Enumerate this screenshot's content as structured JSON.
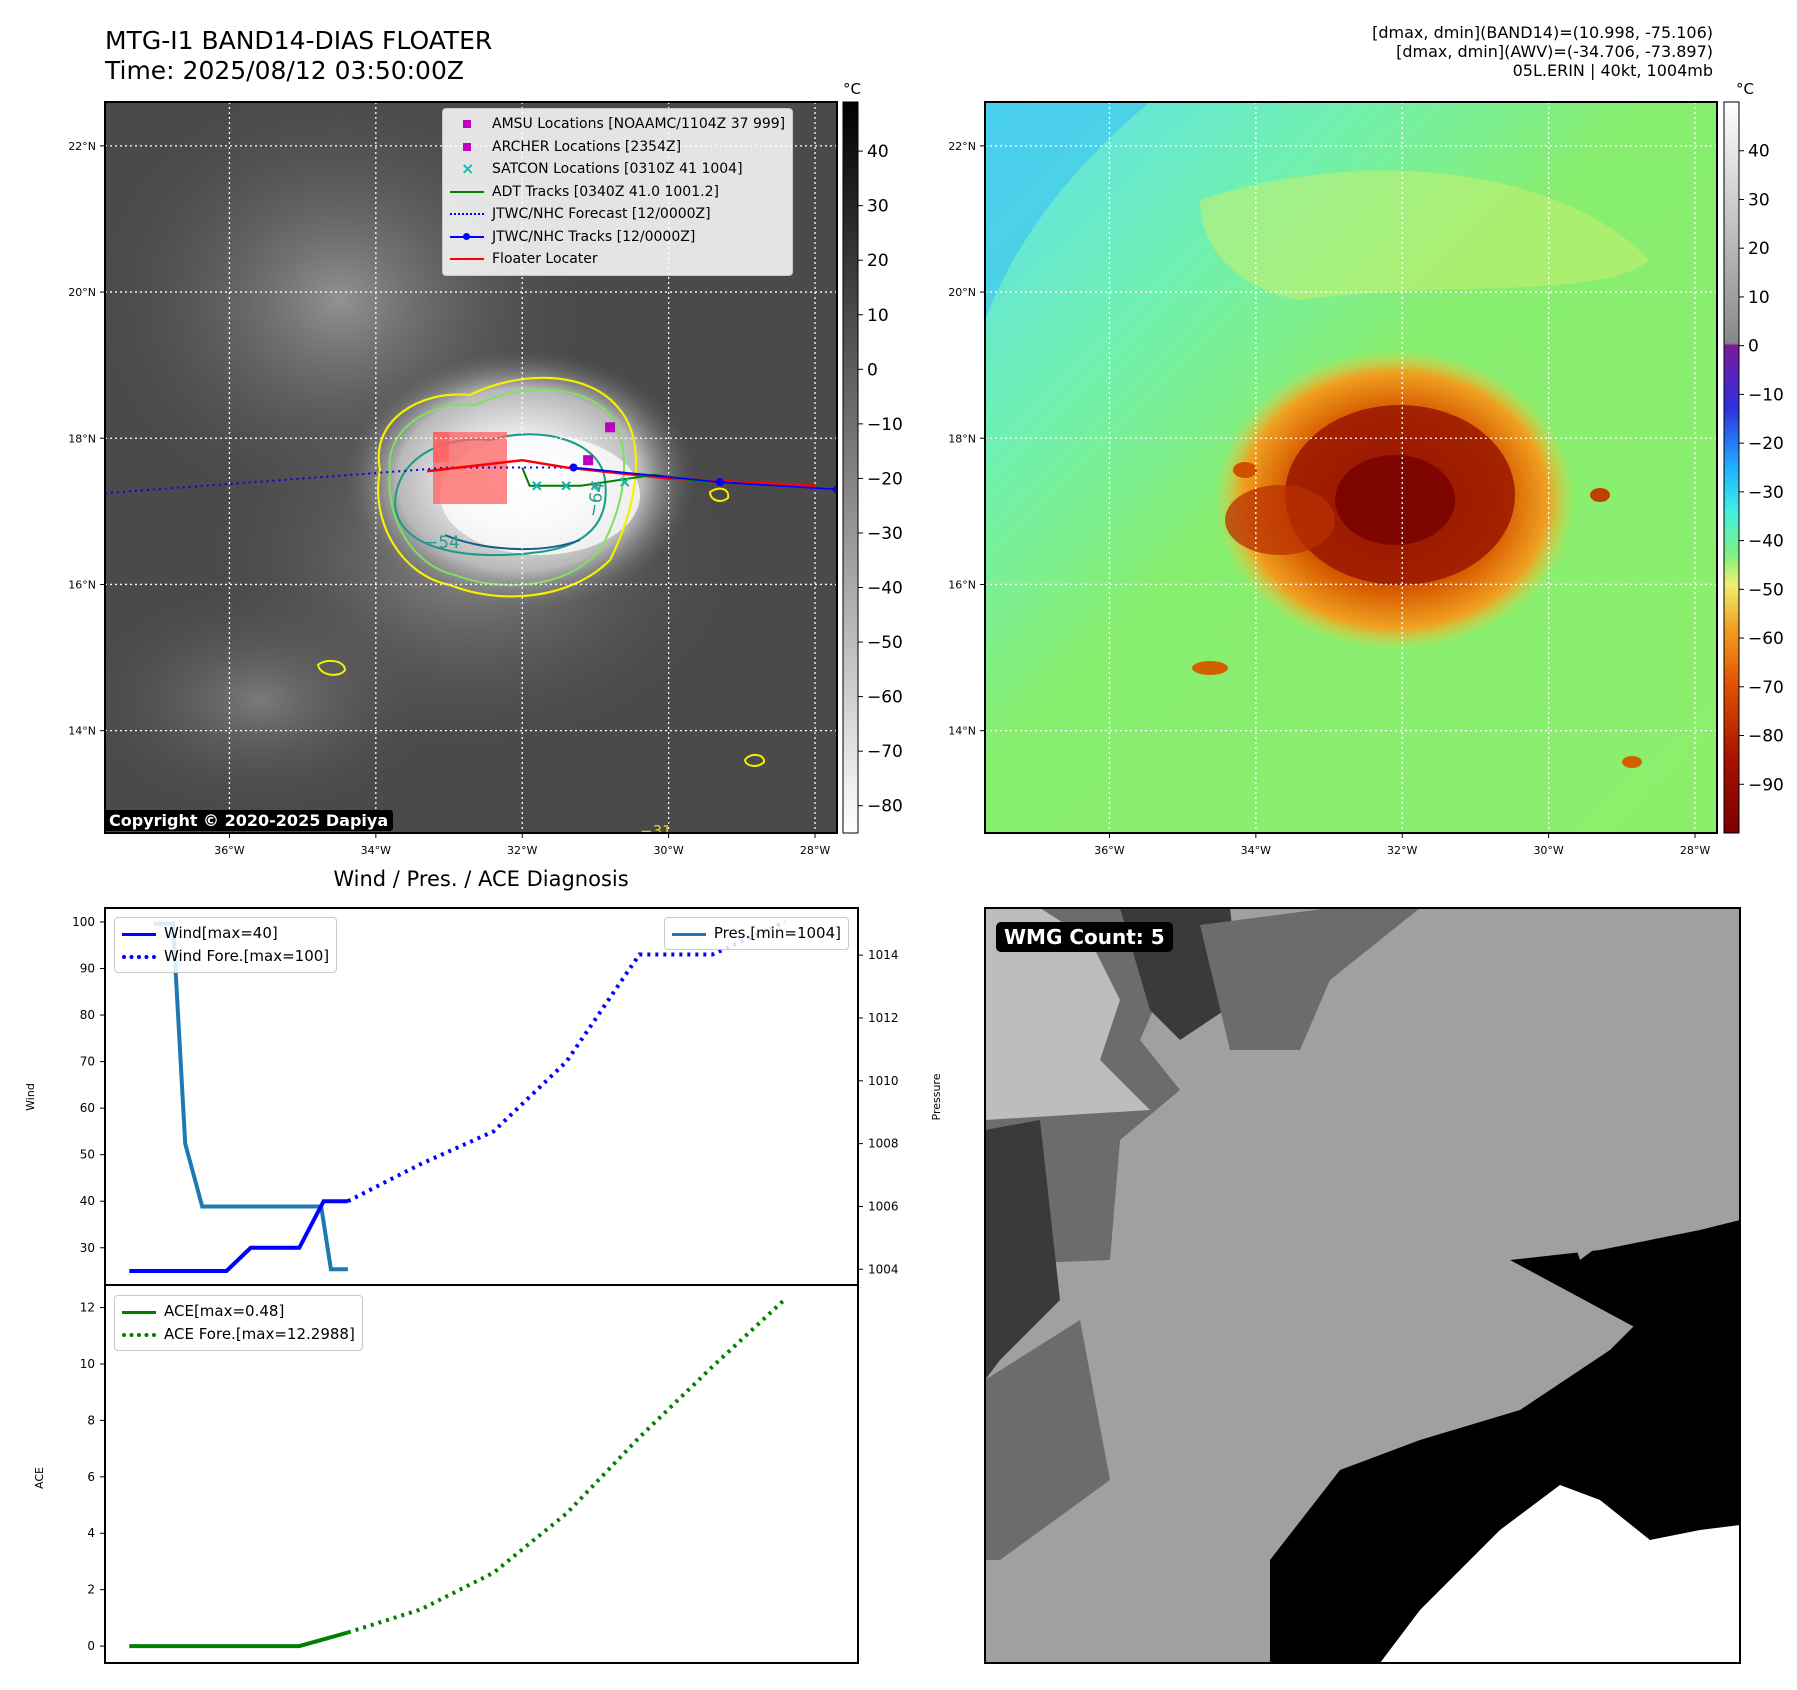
{
  "header": {
    "title_line1": "MTG-I1 BAND14-DIAS FLOATER",
    "title_line2": "Time: 2025/08/12 03:50:00Z",
    "info_line1": "[dmax, dmin](BAND14)=(10.998, -75.106)",
    "info_line2": "[dmax, dmin](AWV)=(-34.706, -73.897)",
    "info_line3": "05L.ERIN | 40kt, 1004mb"
  },
  "map_axes": {
    "lat_labels": [
      "22°N",
      "20°N",
      "18°N",
      "16°N",
      "14°N"
    ],
    "lon_labels": [
      "36°W",
      "34°W",
      "32°W",
      "30°W",
      "28°W"
    ],
    "lat_values": [
      22,
      20,
      18,
      16,
      14
    ],
    "lon_values": [
      -36,
      -34,
      -32,
      -30,
      -28
    ],
    "lat_range": [
      12.6,
      22.6
    ],
    "lon_range": [
      -37.7,
      -27.7
    ]
  },
  "ir_colorbar": {
    "unit": "°C",
    "ticks": [
      "40",
      "30",
      "20",
      "10",
      "0",
      "−10",
      "−20",
      "−30",
      "−40",
      "−50",
      "−60",
      "−70",
      "−80"
    ],
    "tick_values": [
      40,
      30,
      20,
      10,
      0,
      -10,
      -20,
      -30,
      -40,
      -50,
      -60,
      -70,
      -80
    ],
    "range": [
      -85,
      49
    ]
  },
  "color_colorbar": {
    "unit": "°C",
    "ticks": [
      "40",
      "30",
      "20",
      "10",
      "0",
      "−10",
      "−20",
      "−30",
      "−40",
      "−50",
      "−60",
      "−70",
      "−80",
      "−90"
    ],
    "tick_values": [
      40,
      30,
      20,
      10,
      0,
      -10,
      -20,
      -30,
      -40,
      -50,
      -60,
      -70,
      -80,
      -90
    ],
    "range": [
      -100,
      50
    ]
  },
  "map_legend": [
    {
      "label": "AMSU Locations [NOAAMC/1104Z 37 999]",
      "kind": "square",
      "color": "#bf00bf"
    },
    {
      "label": "ARCHER Locations [2354Z]",
      "kind": "square",
      "color": "#bf00bf"
    },
    {
      "label": "SATCON Locations [0310Z 41 1004]",
      "kind": "x",
      "color": "#17b8b0"
    },
    {
      "label": "ADT Tracks [0340Z 41.0 1001.2]",
      "kind": "line",
      "color": "#008000"
    },
    {
      "label": "JTWC/NHC Forecast [12/0000Z]",
      "kind": "dotted",
      "color": "#0000ff"
    },
    {
      "label": "JTWC/NHC Tracks [12/0000Z]",
      "kind": "line-dot",
      "color": "#0000ff"
    },
    {
      "label": "Floater Locater",
      "kind": "line",
      "color": "#ff0000"
    }
  ],
  "contour_labels": [
    "−54",
    "−64",
    "−31"
  ],
  "copyright": "Copyright © 2020-2025 Dapiya",
  "storm": {
    "jtwc_forecast_track": [
      [
        -37.7,
        17.25
      ],
      [
        -35.0,
        17.45
      ],
      [
        -33.0,
        17.6
      ],
      [
        -31.3,
        17.6
      ]
    ],
    "jtwc_track": [
      [
        -31.3,
        17.6
      ],
      [
        -29.3,
        17.4
      ],
      [
        -27.7,
        17.3
      ]
    ],
    "adt_track": [
      [
        -32.0,
        17.6
      ],
      [
        -31.9,
        17.35
      ],
      [
        -31.2,
        17.35
      ],
      [
        -30.2,
        17.5
      ],
      [
        -29.5,
        17.4
      ]
    ],
    "floater_track": [
      [
        -33.3,
        17.55
      ],
      [
        -32.0,
        17.7
      ],
      [
        -31.4,
        17.6
      ],
      [
        -30.0,
        17.45
      ],
      [
        -28.0,
        17.35
      ]
    ],
    "amsu_points": [
      [
        -30.8,
        18.15
      ]
    ],
    "archer_points": [
      [
        -31.1,
        17.7
      ]
    ],
    "satcon_points": [
      [
        -31.8,
        17.35
      ],
      [
        -31.4,
        17.35
      ],
      [
        -31.0,
        17.35
      ],
      [
        -30.6,
        17.4
      ]
    ]
  },
  "diagnosis": {
    "title": "Wind / Pres. / ACE Diagnosis",
    "wind_ylabel": "Wind",
    "pres_ylabel": "Pressure",
    "ace_ylabel": "ACE",
    "legend_wind": "Wind[max=40]",
    "legend_wind_fore": "Wind Fore.[max=100]",
    "legend_pres": "Pres.[min=1004]",
    "legend_ace": "ACE[max=0.48]",
    "legend_ace_fore": "ACE Fore.[max=12.2988]",
    "wind_ticks": [
      "100",
      "90",
      "80",
      "70",
      "60",
      "50",
      "40",
      "30"
    ],
    "pres_ticks": [
      "1014",
      "1012",
      "1010",
      "1008",
      "1006",
      "1004"
    ],
    "ace_ticks": [
      "12",
      "10",
      "8",
      "6",
      "4",
      "2",
      "0"
    ]
  },
  "chart_data": [
    {
      "type": "line",
      "title": "Wind / Pres. / ACE Diagnosis",
      "xlabel": "",
      "ylabel": "Wind",
      "ylim": [
        22,
        103
      ],
      "series": [
        {
          "name": "Wind[max=40]",
          "x": [
            0,
            1,
            2,
            3,
            4,
            5,
            6,
            7,
            8,
            9
          ],
          "values": [
            25,
            25,
            25,
            25,
            25,
            30,
            30,
            30,
            40,
            40
          ],
          "color": "#0000ff",
          "style": "solid"
        },
        {
          "name": "Wind Fore.[max=100]",
          "x": [
            9,
            12,
            15,
            18,
            21,
            24,
            27
          ],
          "values": [
            40,
            48,
            55,
            70,
            93,
            93,
            100
          ],
          "color": "#0000ff",
          "style": "dotted"
        }
      ]
    },
    {
      "type": "line",
      "ylabel": "Pressure",
      "ylim": [
        1003.5,
        1015.5
      ],
      "series": [
        {
          "name": "Pres.[min=1004]",
          "x": [
            1,
            1.8,
            2.3,
            3,
            4,
            5,
            7,
            7.9,
            8.3,
            9
          ],
          "values": [
            1015,
            1015,
            1008,
            1006,
            1006,
            1006,
            1006,
            1006,
            1004,
            1004
          ],
          "color": "#1f77b4",
          "style": "solid"
        }
      ]
    },
    {
      "type": "line",
      "ylabel": "ACE",
      "ylim": [
        -0.6,
        12.8
      ],
      "series": [
        {
          "name": "ACE[max=0.48]",
          "x": [
            0,
            7,
            8,
            9
          ],
          "values": [
            0,
            0,
            0.24,
            0.48
          ],
          "color": "#008000",
          "style": "solid"
        },
        {
          "name": "ACE Fore.[max=12.2988]",
          "x": [
            9,
            12,
            15,
            18,
            21,
            24,
            27
          ],
          "values": [
            0.48,
            1.3,
            2.6,
            4.7,
            7.4,
            9.9,
            12.2988
          ],
          "color": "#008000",
          "style": "dotted"
        }
      ]
    }
  ],
  "wmg_label": "WMG Count: 5"
}
